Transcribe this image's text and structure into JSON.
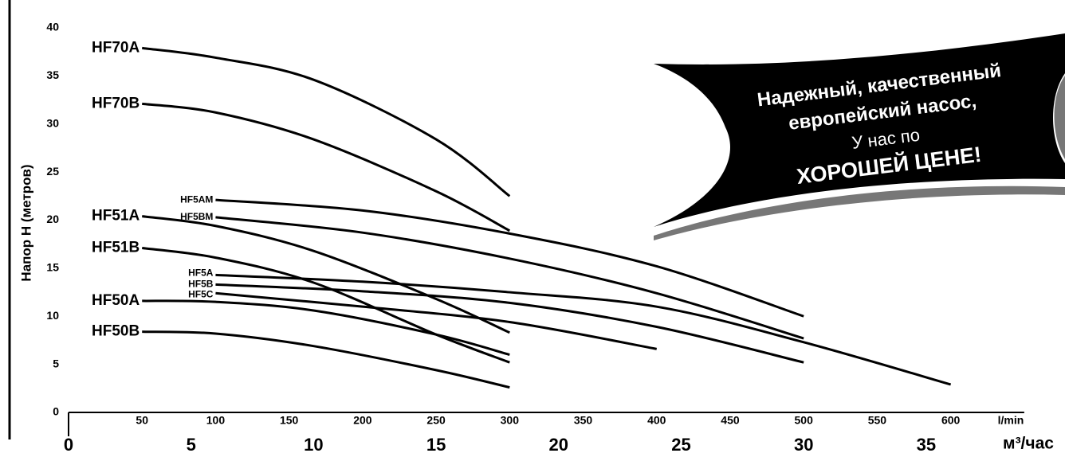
{
  "chart_data": {
    "type": "line",
    "ylabel": "Напор H (метров)",
    "xlabel": "м³/час",
    "x2label": "l/min",
    "xlim": [
      0,
      39
    ],
    "ylim": [
      0,
      40
    ],
    "x2lim": [
      0,
      650
    ],
    "xticks": [
      0,
      5,
      10,
      15,
      20,
      25,
      30,
      35
    ],
    "yticks": [
      0,
      5,
      10,
      15,
      20,
      25,
      30,
      35,
      40
    ],
    "x2ticks": [
      50,
      100,
      150,
      200,
      250,
      300,
      350,
      400,
      450,
      500,
      550,
      600
    ],
    "grid": false,
    "series": [
      {
        "name": "HF70A",
        "color": "#000000",
        "x": [
          3,
          6,
          10,
          15,
          18
        ],
        "values": [
          37.9,
          36.9,
          34.6,
          28.4,
          22.5
        ]
      },
      {
        "name": "HF70B",
        "color": "#000000",
        "x": [
          3,
          6,
          10,
          15,
          18
        ],
        "values": [
          32.1,
          31.2,
          28.4,
          23,
          18.9
        ]
      },
      {
        "name": "HF5AM",
        "color": "#000000",
        "x": [
          6,
          12,
          18,
          24,
          30
        ],
        "values": [
          22.1,
          21,
          18.6,
          15.2,
          10
        ]
      },
      {
        "name": "HF5BM",
        "color": "#000000",
        "x": [
          6,
          12,
          18,
          24,
          30
        ],
        "values": [
          20.3,
          18.7,
          16,
          12.4,
          7.7
        ]
      },
      {
        "name": "HF51A",
        "color": "#000000",
        "x": [
          3,
          6,
          10,
          15,
          18
        ],
        "values": [
          20.4,
          19.4,
          16.8,
          11.8,
          8.3
        ]
      },
      {
        "name": "HF51B",
        "color": "#000000",
        "x": [
          3,
          6,
          10,
          15,
          18
        ],
        "values": [
          17.1,
          16.1,
          13.5,
          8.1,
          5.2
        ]
      },
      {
        "name": "HF5A",
        "color": "#000000",
        "x": [
          6,
          12,
          18,
          24,
          30,
          36
        ],
        "values": [
          14.3,
          13.6,
          12.5,
          11,
          7.3,
          2.9
        ]
      },
      {
        "name": "HF5B",
        "color": "#000000",
        "x": [
          6,
          12,
          18,
          24,
          30
        ],
        "values": [
          13.3,
          12.6,
          11.4,
          8.9,
          5.2
        ]
      },
      {
        "name": "HF5C",
        "color": "#000000",
        "x": [
          6,
          12,
          18,
          24
        ],
        "values": [
          12.4,
          11,
          9.4,
          6.6
        ]
      },
      {
        "name": "HF50A",
        "color": "#000000",
        "x": [
          3,
          6,
          10,
          15,
          18
        ],
        "values": [
          11.6,
          11.5,
          10.6,
          8.1,
          6
        ]
      },
      {
        "name": "HF50B",
        "color": "#000000",
        "x": [
          3,
          6,
          10,
          15,
          18
        ],
        "values": [
          8.4,
          8.2,
          6.9,
          4.4,
          2.6
        ]
      }
    ]
  },
  "banner": {
    "lines": [
      "Надежный, качественный",
      "европейский насос,",
      "У нас по",
      "ХОРОШЕЙ ЦЕНЕ!"
    ]
  }
}
